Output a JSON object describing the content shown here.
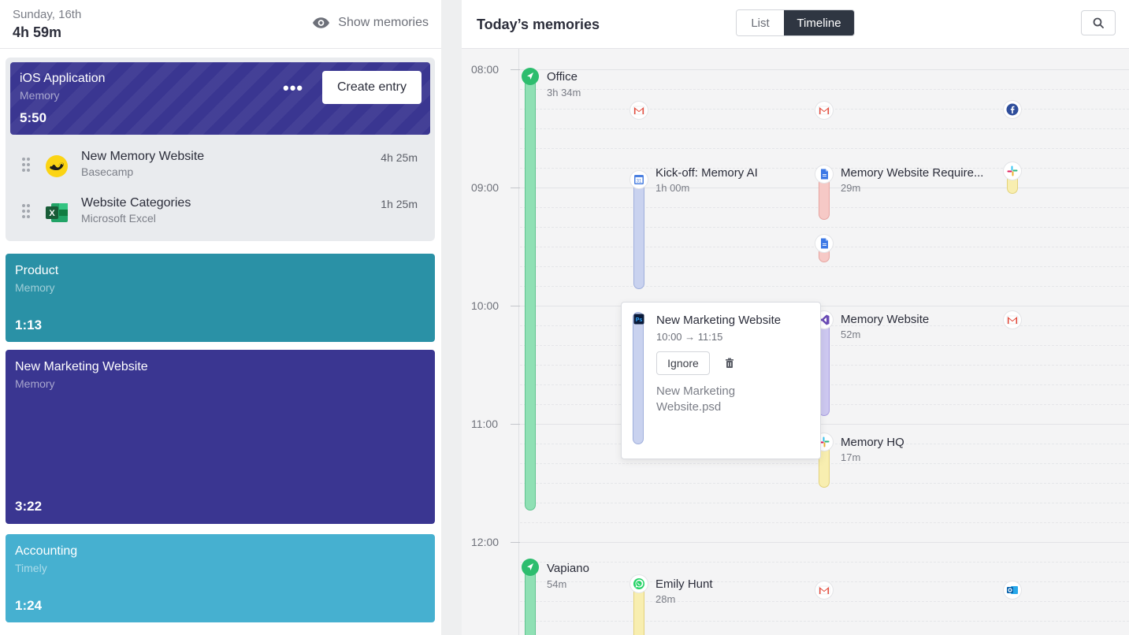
{
  "left": {
    "date": "Sunday, 16th",
    "total": "4h 59m",
    "show_memories": "Show memories",
    "ios_card": {
      "title": "iOS Application",
      "subtitle": "Memory",
      "time": "5:50",
      "more": "•••",
      "create_entry": "Create entry"
    },
    "sub_items": [
      {
        "title": "New Memory Website",
        "app": "Basecamp",
        "duration": "4h 25m",
        "icon": "basecamp-icon"
      },
      {
        "title": "Website Categories",
        "app": "Microsoft Excel",
        "duration": "1h 25m",
        "icon": "excel-icon"
      }
    ],
    "cards": [
      {
        "title": "Product",
        "subtitle": "Memory",
        "time": "1:13",
        "color": "#2a91a6"
      },
      {
        "title": "New Marketing Website",
        "subtitle": "Memory",
        "time": "3:22",
        "color": "#3a3691"
      },
      {
        "title": "Accounting",
        "subtitle": "Timely",
        "time": "1:24",
        "color": "#46b0d0"
      }
    ]
  },
  "right": {
    "title": "Today’s memories",
    "view_list": "List",
    "view_timeline": "Timeline",
    "hours": [
      "08:00",
      "09:00",
      "10:00",
      "11:00",
      "12:00"
    ],
    "events": {
      "office": {
        "title": "Office",
        "duration": "3h 34m"
      },
      "kickoff": {
        "title": "Kick-off: Memory AI",
        "duration": "1h 00m"
      },
      "requirements": {
        "title": "Memory Website Require...",
        "duration": "29m"
      },
      "memory_website": {
        "title": "Memory Website",
        "duration": "52m"
      },
      "memory_hq": {
        "title": "Memory HQ",
        "duration": "17m"
      },
      "vapiano": {
        "title": "Vapiano",
        "duration": "54m"
      },
      "emily": {
        "title": "Emily Hunt",
        "duration": "28m"
      }
    },
    "popover": {
      "title": "New Marketing Website",
      "range": "10:00 → 11:15",
      "ignore": "Ignore",
      "file": "New Marketing Website.psd"
    }
  },
  "colors": {
    "indigo": "#3a3691",
    "teal": "#2a91a6",
    "sky": "#46b0d0",
    "location_green": "#8fe0b4"
  }
}
